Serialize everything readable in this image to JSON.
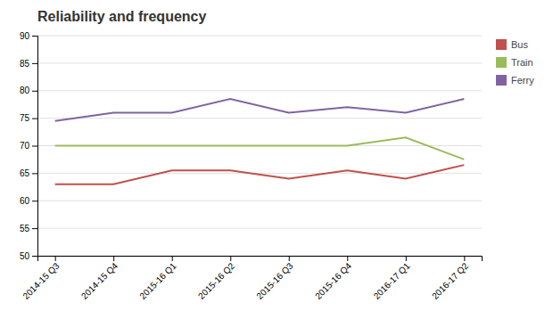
{
  "chart_data": {
    "type": "line",
    "title": "Reliability and frequency",
    "categories": [
      "2014-15 Q3",
      "2014-15 Q4",
      "2015-16 Q1",
      "2015-16 Q2",
      "2015-16 Q3",
      "2015-16 Q4",
      "2016-17 Q1",
      "2016-17 Q2"
    ],
    "series": [
      {
        "name": "Bus",
        "color": "#c0504d",
        "values": [
          63,
          63,
          65.5,
          65.5,
          64,
          65.5,
          64,
          66.5
        ]
      },
      {
        "name": "Train",
        "color": "#9bbb59",
        "values": [
          70,
          70,
          70,
          70,
          70,
          70,
          71.5,
          67.5
        ]
      },
      {
        "name": "Ferry",
        "color": "#8064a2",
        "values": [
          74.5,
          76,
          76,
          78.5,
          76,
          77,
          76,
          78.5
        ]
      }
    ],
    "ylim": [
      50,
      90
    ],
    "yticks": [
      50,
      55,
      60,
      65,
      70,
      75,
      80,
      85,
      90
    ],
    "grid": true,
    "legend": "right"
  }
}
